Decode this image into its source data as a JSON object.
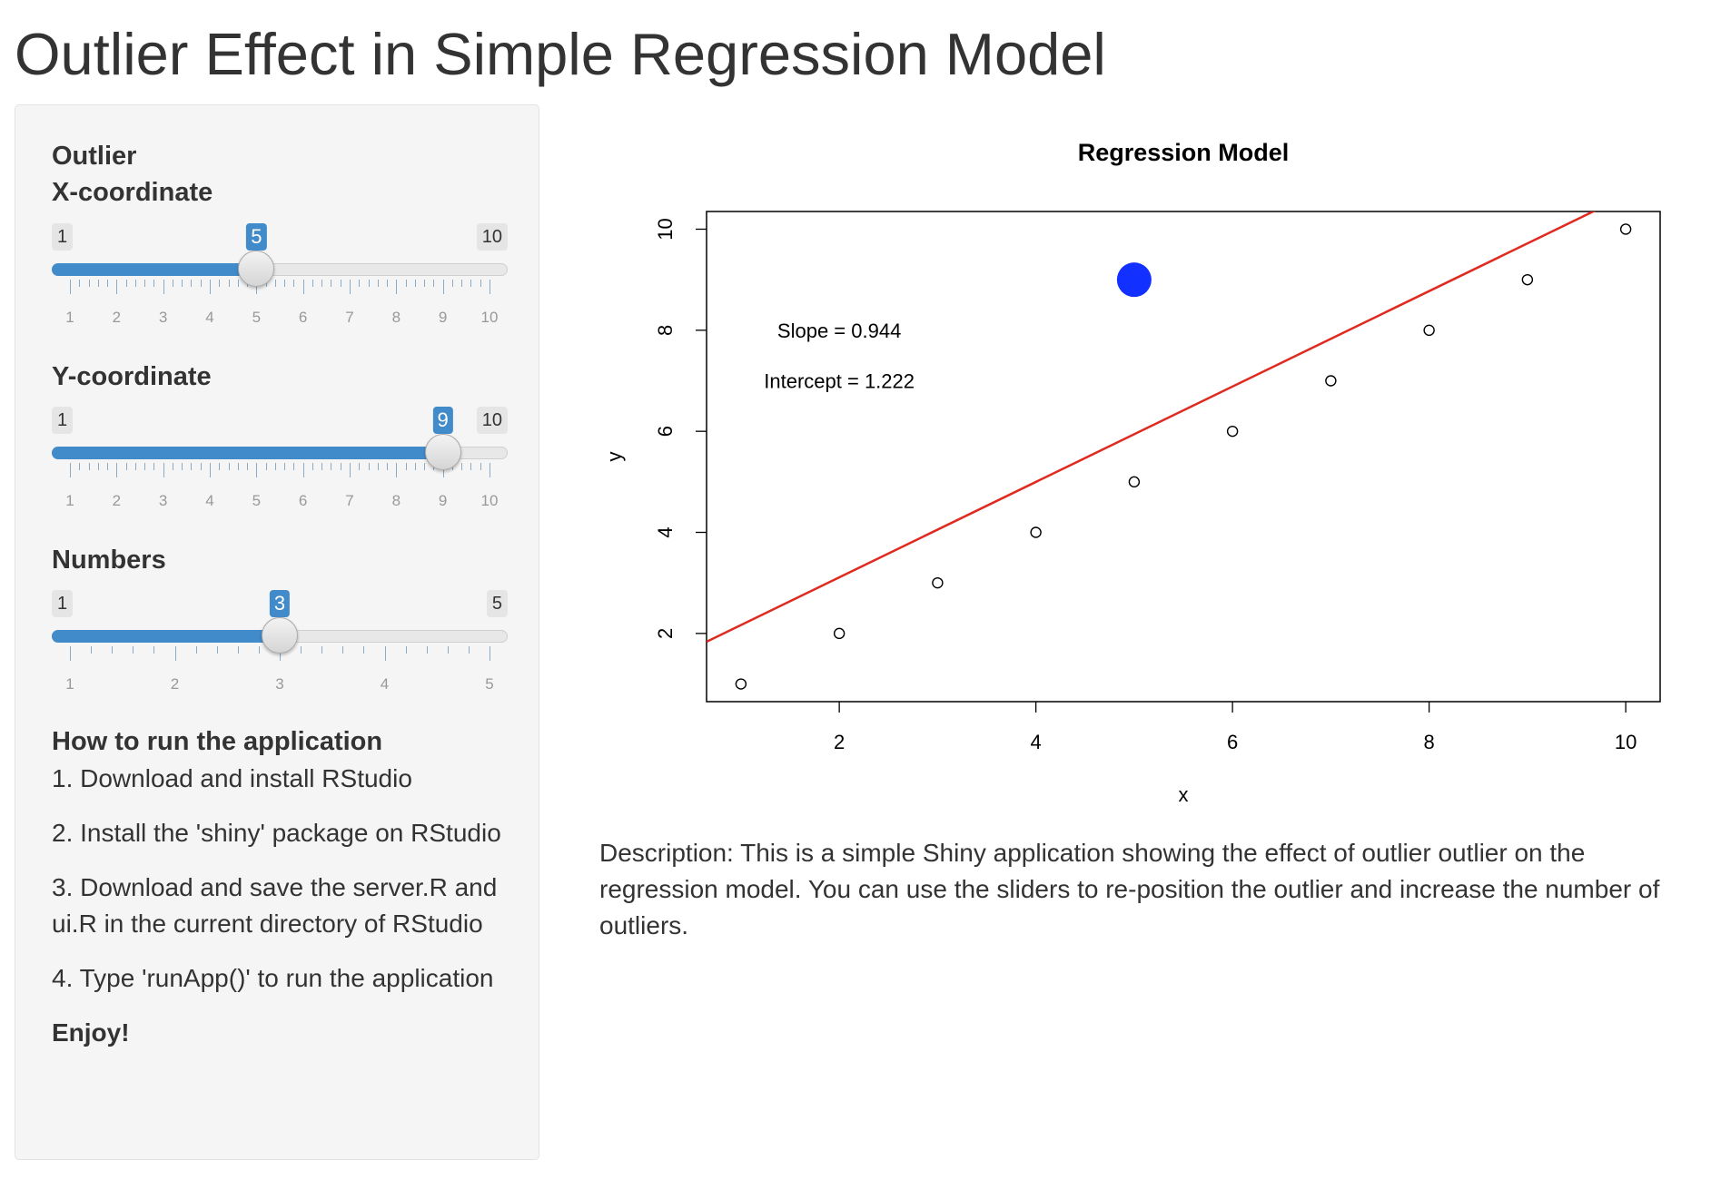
{
  "page": {
    "title": "Outlier Effect in Simple Regression Model"
  },
  "sidebar": {
    "outlier_label": "Outlier",
    "sliders": [
      {
        "label": "X-coordinate",
        "min": 1,
        "max": 10,
        "value": 5,
        "min_label": "1",
        "max_label": "10",
        "value_label": "5",
        "tick_labels": [
          "1",
          "2",
          "3",
          "4",
          "5",
          "6",
          "7",
          "8",
          "9",
          "10"
        ]
      },
      {
        "label": "Y-coordinate",
        "min": 1,
        "max": 10,
        "value": 9,
        "min_label": "1",
        "max_label": "10",
        "value_label": "9",
        "tick_labels": [
          "1",
          "2",
          "3",
          "4",
          "5",
          "6",
          "7",
          "8",
          "9",
          "10"
        ]
      },
      {
        "label": "Numbers",
        "min": 1,
        "max": 5,
        "value": 3,
        "min_label": "1",
        "max_label": "5",
        "value_label": "3",
        "tick_labels": [
          "1",
          "2",
          "3",
          "4",
          "5"
        ]
      }
    ],
    "help": {
      "heading": "How to run the application",
      "steps": [
        "1. Download and install RStudio",
        "2. Install the 'shiny' package on RStudio",
        "3. Download and save the server.R and ui.R in the current directory of RStudio",
        "4. Type 'runApp()' to run the application"
      ],
      "closing": "Enjoy!"
    }
  },
  "main": {
    "description": "Description: This is a simple Shiny application showing the effect of outlier outlier on the regression model. You can use the sliders to re-position the outlier and increase the number of outliers."
  },
  "chart_data": {
    "type": "scatter",
    "title": "Regression Model",
    "xlabel": "x",
    "ylabel": "y",
    "xlim": [
      0.65,
      10.35
    ],
    "ylim": [
      0.65,
      10.35
    ],
    "x_ticks": [
      2,
      4,
      6,
      8,
      10
    ],
    "y_ticks": [
      2,
      4,
      6,
      8,
      10
    ],
    "points": {
      "x": [
        1,
        2,
        3,
        4,
        5,
        6,
        7,
        8,
        9,
        10
      ],
      "y": [
        1,
        2,
        3,
        4,
        5,
        6,
        7,
        8,
        9,
        10
      ]
    },
    "outlier": {
      "x": 5,
      "y": 9
    },
    "regression_line": {
      "slope": 0.944,
      "intercept": 1.222
    },
    "annotations": [
      {
        "text": "Slope =  0.944",
        "x": 2.0,
        "y": 8.0
      },
      {
        "text": "Intercept =  1.222",
        "x": 2.0,
        "y": 7.0
      }
    ],
    "colors": {
      "outlier": "#1230ff",
      "line": "#e02a20",
      "points": "#000000"
    },
    "grid": false,
    "legend": "none"
  }
}
